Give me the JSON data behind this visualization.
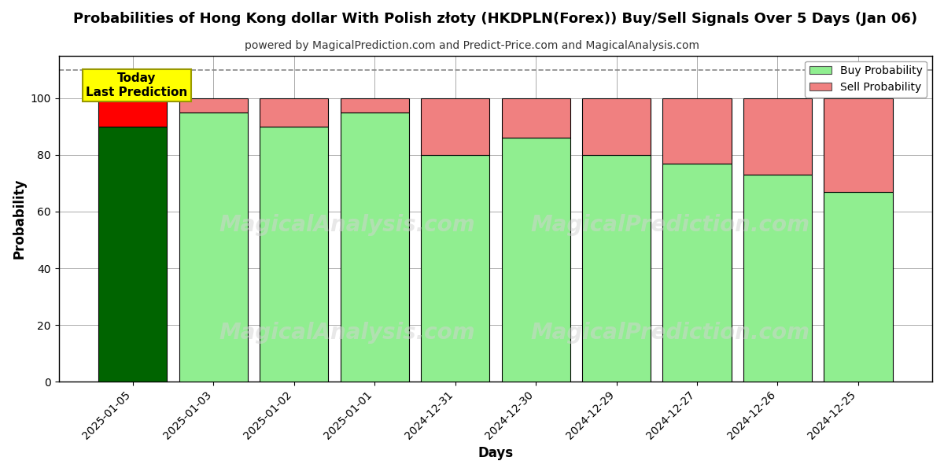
{
  "title": "Probabilities of Hong Kong dollar With Polish złoty (HKDPLN(Forex)) Buy/Sell Signals Over 5 Days (Jan 06)",
  "subtitle": "powered by MagicalPrediction.com and Predict-Price.com and MagicalAnalysis.com",
  "xlabel": "Days",
  "ylabel": "Probability",
  "dates": [
    "2025-01-05",
    "2025-01-03",
    "2025-01-02",
    "2025-01-01",
    "2024-12-31",
    "2024-12-30",
    "2024-12-29",
    "2024-12-27",
    "2024-12-26",
    "2024-12-25"
  ],
  "buy_values": [
    90,
    95,
    90,
    95,
    80,
    86,
    80,
    77,
    73,
    67
  ],
  "sell_values": [
    10,
    5,
    10,
    5,
    20,
    14,
    20,
    23,
    27,
    33
  ],
  "today_bar_buy_color": "#006400",
  "today_bar_sell_color": "#FF0000",
  "regular_buy_color": "#90EE90",
  "regular_sell_color": "#F08080",
  "bar_edge_color": "#000000",
  "bar_width": 0.85,
  "ylim": [
    0,
    115
  ],
  "yticks": [
    0,
    20,
    40,
    60,
    80,
    100
  ],
  "grid_color": "#aaaaaa",
  "dashed_line_y": 110,
  "legend_buy_color": "#90EE90",
  "legend_sell_color": "#F08080",
  "today_label_text": "Today\nLast Prediction",
  "today_label_bg": "#FFFF00",
  "watermark_text1": "MagicalAnalysis.com",
  "watermark_text2": "MagicalPrediction.com",
  "background_color": "#ffffff",
  "title_fontsize": 13,
  "subtitle_fontsize": 10
}
